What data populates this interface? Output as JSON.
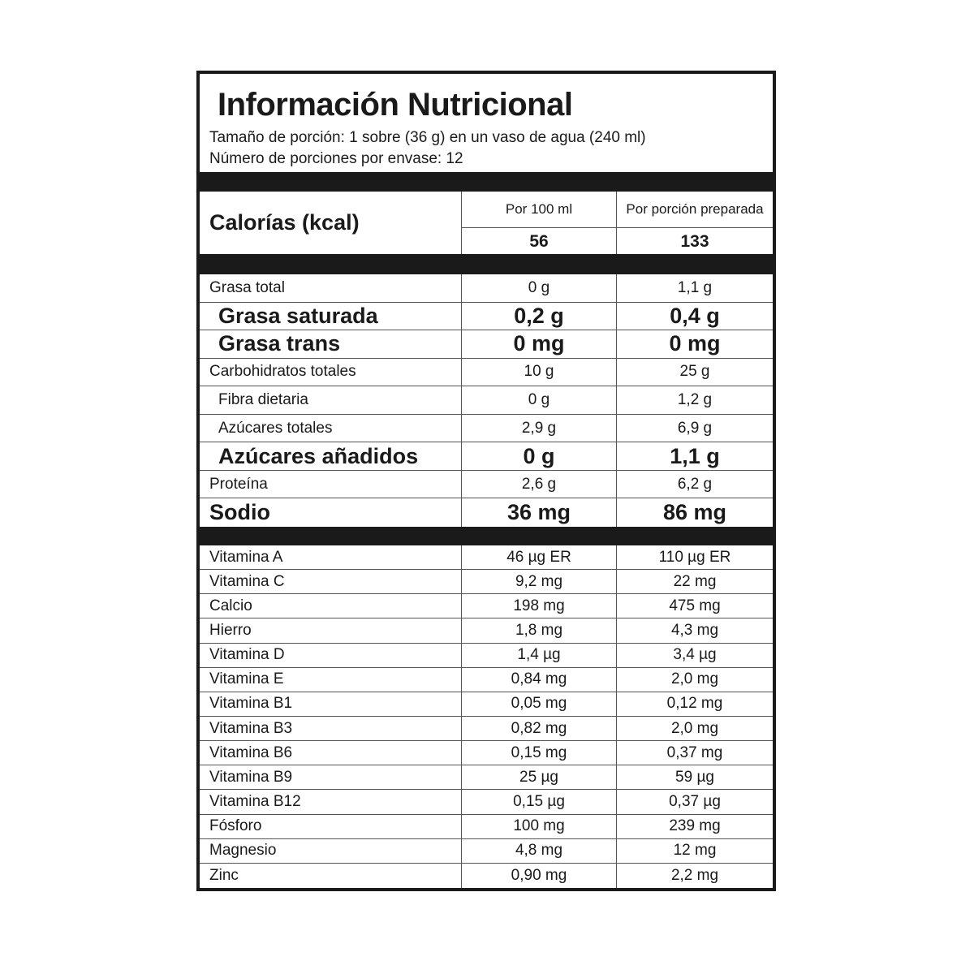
{
  "title": "Información Nutricional",
  "serving_size": "Tamaño de porción: 1 sobre (36 g) en un vaso de agua (240 ml)",
  "servings_per_container": "Número de porciones por envase: 12",
  "calories": {
    "label": "Calorías (kcal)",
    "col1_header": "Por 100 ml",
    "col2_header": "Por porción preparada",
    "col1_value": "56",
    "col2_value": "133"
  },
  "nutrients": [
    {
      "label": "Grasa total",
      "per_100ml": "0 g",
      "per_serving": "1,1 g",
      "style": "normal"
    },
    {
      "label": "Grasa saturada",
      "per_100ml": "0,2 g",
      "per_serving": "0,4 g",
      "style": "big indent"
    },
    {
      "label": "Grasa trans",
      "per_100ml": "0 mg",
      "per_serving": "0 mg",
      "style": "big indent"
    },
    {
      "label": "Carbohidratos totales",
      "per_100ml": "10 g",
      "per_serving": "25 g",
      "style": "normal"
    },
    {
      "label": "Fibra dietaria",
      "per_100ml": "0 g",
      "per_serving": "1,2 g",
      "style": "normal indent"
    },
    {
      "label": "Azúcares totales",
      "per_100ml": "2,9 g",
      "per_serving": "6,9 g",
      "style": "normal indent"
    },
    {
      "label": "Azúcares añadidos",
      "per_100ml": "0 g",
      "per_serving": "1,1 g",
      "style": "big indent"
    },
    {
      "label": "Proteína",
      "per_100ml": "2,6 g",
      "per_serving": "6,2 g",
      "style": "normal"
    },
    {
      "label": "Sodio",
      "per_100ml": "36 mg",
      "per_serving": "86 mg",
      "style": "big"
    }
  ],
  "micronutrients": [
    {
      "label": "Vitamina A",
      "per_100ml": "46 µg ER",
      "per_serving": "110 µg ER"
    },
    {
      "label": "Vitamina C",
      "per_100ml": "9,2 mg",
      "per_serving": "22 mg"
    },
    {
      "label": "Calcio",
      "per_100ml": "198 mg",
      "per_serving": "475 mg"
    },
    {
      "label": "Hierro",
      "per_100ml": "1,8 mg",
      "per_serving": "4,3 mg"
    },
    {
      "label": "Vitamina D",
      "per_100ml": "1,4 µg",
      "per_serving": "3,4 µg"
    },
    {
      "label": "Vitamina E",
      "per_100ml": "0,84 mg",
      "per_serving": "2,0 mg"
    },
    {
      "label": "Vitamina B1",
      "per_100ml": "0,05 mg",
      "per_serving": "0,12 mg"
    },
    {
      "label": "Vitamina B3",
      "per_100ml": "0,82 mg",
      "per_serving": "2,0 mg"
    },
    {
      "label": "Vitamina B6",
      "per_100ml": "0,15 mg",
      "per_serving": "0,37 mg"
    },
    {
      "label": "Vitamina B9",
      "per_100ml": "25 µg",
      "per_serving": "59 µg"
    },
    {
      "label": "Vitamina B12",
      "per_100ml": "0,15 µg",
      "per_serving": "0,37 µg"
    },
    {
      "label": "Fósforo",
      "per_100ml": "100 mg",
      "per_serving": "239 mg"
    },
    {
      "label": "Magnesio",
      "per_100ml": "4,8 mg",
      "per_serving": "12 mg"
    },
    {
      "label": "Zinc",
      "per_100ml": "0,90 mg",
      "per_serving": "2,2 mg"
    }
  ]
}
